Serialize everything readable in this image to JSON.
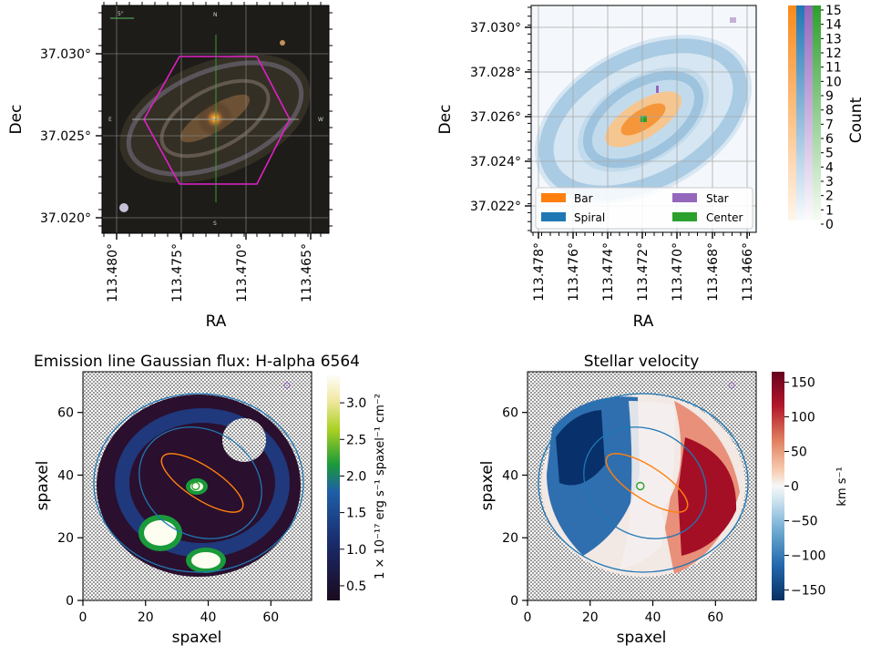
{
  "chart_data": [
    {
      "id": "sdss-image",
      "type": "image",
      "xlabel": "RA",
      "ylabel": "Dec",
      "x_ticks": [
        "113.480°",
        "113.475°",
        "113.470°",
        "113.465°"
      ],
      "y_ticks": [
        "37.030°",
        "37.025°",
        "37.020°"
      ],
      "compass": {
        "north": "N",
        "south": "S",
        "east": "E",
        "west": "W"
      },
      "scale_bar_label": "5\"",
      "overlay": "hexagon",
      "colors": {
        "hexagon": "#e020c8",
        "grid": "#909090",
        "galaxy_core": "#f0a030"
      }
    },
    {
      "id": "galaxy-zoo-mask",
      "type": "heatmap",
      "xlabel": "RA",
      "ylabel": "Dec",
      "x_ticks": [
        "113.478°",
        "113.476°",
        "113.474°",
        "113.472°",
        "113.470°",
        "113.468°",
        "113.466°"
      ],
      "y_ticks": [
        "37.030°",
        "37.028°",
        "37.026°",
        "37.024°",
        "37.022°"
      ],
      "legend": [
        {
          "label": "Bar",
          "color": "#ff7f0e"
        },
        {
          "label": "Star",
          "color": "#9467bd"
        },
        {
          "label": "Spiral",
          "color": "#1f77b4"
        },
        {
          "label": "Center",
          "color": "#2ca02c"
        }
      ],
      "legend_position": "bottom",
      "colorbar": {
        "label": "Count",
        "range": [
          0,
          15
        ],
        "ticks": [
          "0",
          "1",
          "2",
          "3",
          "4",
          "5",
          "6",
          "7",
          "8",
          "9",
          "10",
          "11",
          "12",
          "13",
          "14",
          "15"
        ]
      }
    },
    {
      "id": "halpha-flux",
      "type": "heatmap",
      "title": "Emission line Gaussian flux: H-alpha 6564",
      "xlabel": "spaxel",
      "ylabel": "spaxel",
      "xlim": [
        0,
        73
      ],
      "ylim": [
        0,
        73
      ],
      "x_ticks": [
        "0",
        "20",
        "40",
        "60"
      ],
      "y_ticks": [
        "0",
        "20",
        "40",
        "60"
      ],
      "colorbar": {
        "label": "1 × 10⁻¹⁷ erg s⁻¹ spaxel⁻¹ cm⁻²",
        "range": [
          0.3,
          3.4
        ],
        "ticks": [
          "0.5",
          "1.0",
          "1.5",
          "2.0",
          "2.5",
          "3.0"
        ],
        "colormap": "ocean-green-yellow-white"
      },
      "center_marker": [
        36,
        36.5
      ]
    },
    {
      "id": "stellar-velocity",
      "type": "heatmap",
      "title": "Stellar velocity",
      "xlabel": "spaxel",
      "ylabel": "spaxel",
      "xlim": [
        0,
        73
      ],
      "ylim": [
        0,
        73
      ],
      "x_ticks": [
        "0",
        "20",
        "40",
        "60"
      ],
      "y_ticks": [
        "0",
        "20",
        "40",
        "60"
      ],
      "colorbar": {
        "label": "km s⁻¹",
        "range": [
          -165,
          165
        ],
        "ticks": [
          "150",
          "100",
          "50",
          "0",
          "−50",
          "−100",
          "−150"
        ],
        "colormap": "RdBu_r"
      },
      "center_marker": [
        36,
        36.5
      ]
    }
  ]
}
